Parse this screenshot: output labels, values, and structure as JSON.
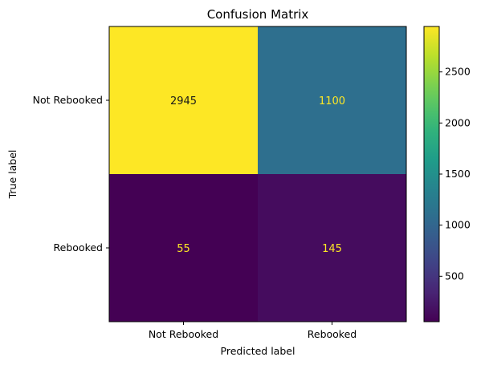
{
  "chart_data": {
    "type": "heatmap",
    "title": "Confusion Matrix",
    "xlabel": "Predicted label",
    "ylabel": "True label",
    "x_categories": [
      "Not Rebooked",
      "Rebooked"
    ],
    "y_categories": [
      "Not Rebooked",
      "Rebooked"
    ],
    "values": [
      [
        2945,
        1100
      ],
      [
        55,
        145
      ]
    ],
    "colormap": "viridis",
    "colorbar": {
      "range": [
        55,
        2945
      ],
      "ticks": [
        500,
        1000,
        1500,
        2000,
        2500
      ]
    },
    "label_colors": {
      "on_dark": "#fde725",
      "on_light": "#1a1a1a"
    }
  }
}
